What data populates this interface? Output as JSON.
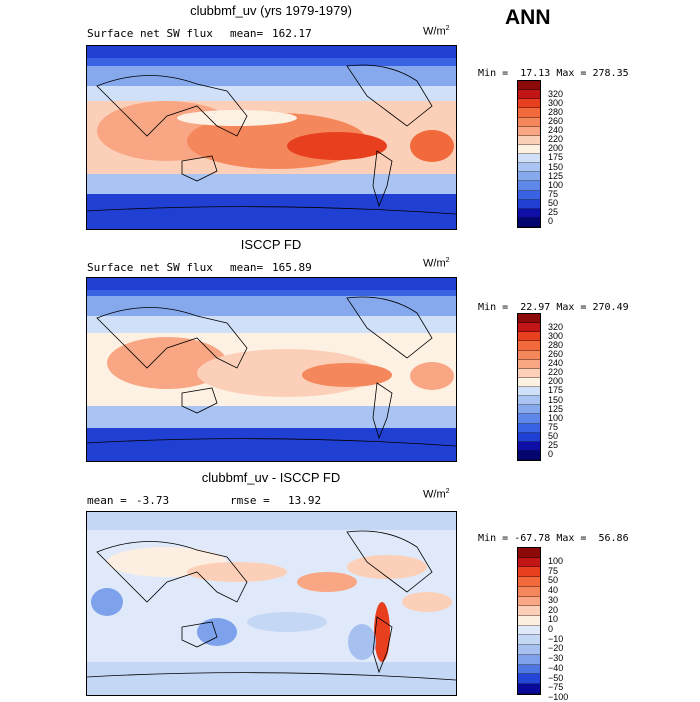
{
  "season": "ANN",
  "panels": [
    {
      "title": "clubbmf_uv (yrs 1979-1979)",
      "left_label": "Surface net SW flux",
      "stat_label": "mean=",
      "stat_value": "162.17",
      "units": "W/m",
      "units_exp": "2",
      "min_label": "Min =",
      "min_value": "17.13",
      "max_label": "Max =",
      "max_value": "278.35",
      "colorbar": [
        "320",
        "300",
        "280",
        "260",
        "240",
        "220",
        "200",
        "175",
        "150",
        "125",
        "100",
        "75",
        "50",
        "25",
        "0"
      ]
    },
    {
      "title": "ISCCP FD",
      "left_label": "Surface net SW flux",
      "stat_label": "mean=",
      "stat_value": "165.89",
      "units": "W/m",
      "units_exp": "2",
      "min_label": "Min =",
      "min_value": "22.97",
      "max_label": "Max =",
      "max_value": "270.49",
      "colorbar": [
        "320",
        "300",
        "280",
        "260",
        "240",
        "220",
        "200",
        "175",
        "150",
        "125",
        "100",
        "75",
        "50",
        "25",
        "0"
      ]
    },
    {
      "title": "clubbmf_uv - ISCCP FD",
      "left_label": "mean =",
      "stat_label": "rmse =",
      "left_value": "-3.73",
      "stat_value": "13.92",
      "units": "W/m",
      "units_exp": "2",
      "min_label": "Min =",
      "min_value": "-67.78",
      "max_label": "Max =",
      "max_value": "56.86",
      "colorbar": [
        "100",
        "75",
        "50",
        "40",
        "30",
        "20",
        "10",
        "0",
        "−10",
        "−20",
        "−30",
        "−40",
        "−50",
        "−75",
        "−100"
      ]
    }
  ],
  "colors": {
    "abs_scale": [
      "#8c0a0a",
      "#c21515",
      "#e8401e",
      "#f26a3c",
      "#f5875c",
      "#f8a683",
      "#fcd0b8",
      "#fdf1e4",
      "#cfe0f8",
      "#a9c4f2",
      "#86a9ee",
      "#5e87ea",
      "#3a63e4",
      "#2040d4",
      "#0f0fa8",
      "#050570"
    ],
    "diff_scale": [
      "#8c0a0a",
      "#c21515",
      "#e8401e",
      "#f26a3c",
      "#f5875c",
      "#f8a683",
      "#fcd0b8",
      "#fdeee2",
      "#dfe9f9",
      "#c4d7f5",
      "#a6c0f0",
      "#7da1eb",
      "#4f77e4",
      "#2545d8",
      "#0a0a9a"
    ],
    "land": "#000000"
  }
}
